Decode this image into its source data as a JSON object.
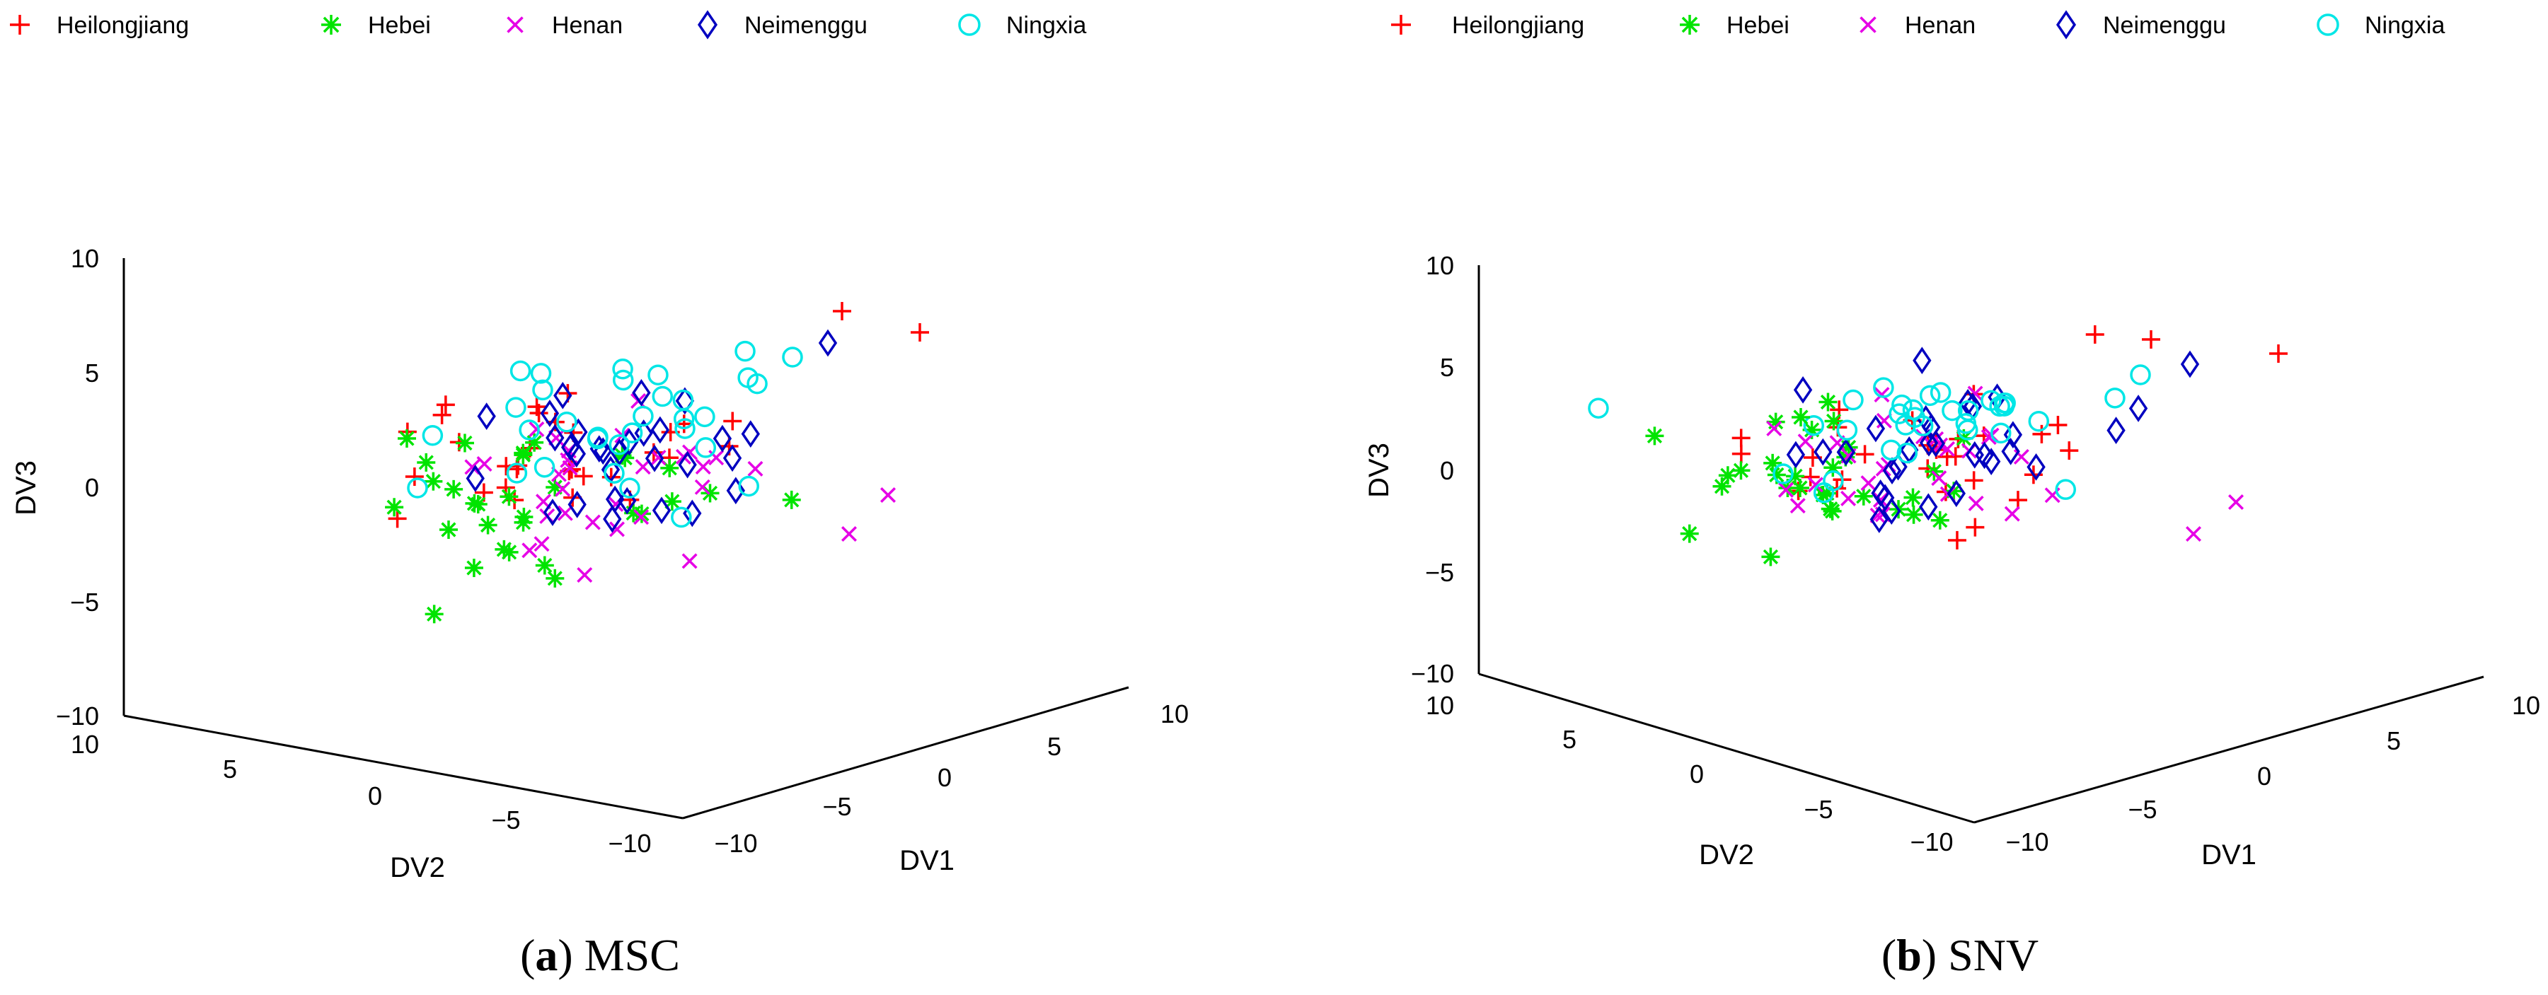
{
  "chart_data": [
    {
      "type": "scatter",
      "projection": "3d",
      "caption_letter": "a",
      "caption_text": "MSC",
      "xlabel": "DV1",
      "ylabel": "DV2",
      "zlabel": "DV3",
      "xlim": [
        -10,
        10
      ],
      "ylim": [
        -10,
        10
      ],
      "zlim": [
        -10,
        10
      ],
      "x_ticks": [
        "−10",
        "−5",
        "0",
        "5",
        "10"
      ],
      "y_ticks": [
        "10",
        "5",
        "0",
        "−5",
        "−10"
      ],
      "z_ticks": [
        "10",
        "5",
        "0",
        "−5",
        "−10"
      ],
      "legend_position": "top",
      "series": [
        {
          "name": "Heilongjiang",
          "marker": "plus",
          "color": "#ff0000",
          "seed": 11
        },
        {
          "name": "Hebei",
          "marker": "asterisk",
          "color": "#00e400",
          "seed": 22
        },
        {
          "name": "Henan",
          "marker": "x",
          "color": "#e600e6",
          "seed": 33
        },
        {
          "name": "Neimenggu",
          "marker": "diamond",
          "color": "#0000c0",
          "seed": 44
        },
        {
          "name": "Ningxia",
          "marker": "circle",
          "color": "#00e6e6",
          "seed": 55
        }
      ]
    },
    {
      "type": "scatter",
      "projection": "3d",
      "caption_letter": "b",
      "caption_text": "SNV",
      "xlabel": "DV1",
      "ylabel": "DV2",
      "zlabel": "DV3",
      "xlim": [
        -10,
        10
      ],
      "ylim": [
        -10,
        10
      ],
      "zlim": [
        -10,
        10
      ],
      "x_ticks": [
        "−10",
        "−5",
        "0",
        "5",
        "10"
      ],
      "y_ticks": [
        "10",
        "5",
        "0",
        "−5",
        "−10"
      ],
      "z_ticks": [
        "10",
        "5",
        "0",
        "−5",
        "−10"
      ],
      "legend_position": "top",
      "series": [
        {
          "name": "Heilongjiang",
          "marker": "plus",
          "color": "#ff0000",
          "seed": 66
        },
        {
          "name": "Hebei",
          "marker": "asterisk",
          "color": "#00e400",
          "seed": 77
        },
        {
          "name": "Henan",
          "marker": "x",
          "color": "#e600e6",
          "seed": 88
        },
        {
          "name": "Neimenggu",
          "marker": "diamond",
          "color": "#0000c0",
          "seed": 99
        },
        {
          "name": "Ningxia",
          "marker": "circle",
          "color": "#00e6e6",
          "seed": 111
        }
      ]
    }
  ]
}
